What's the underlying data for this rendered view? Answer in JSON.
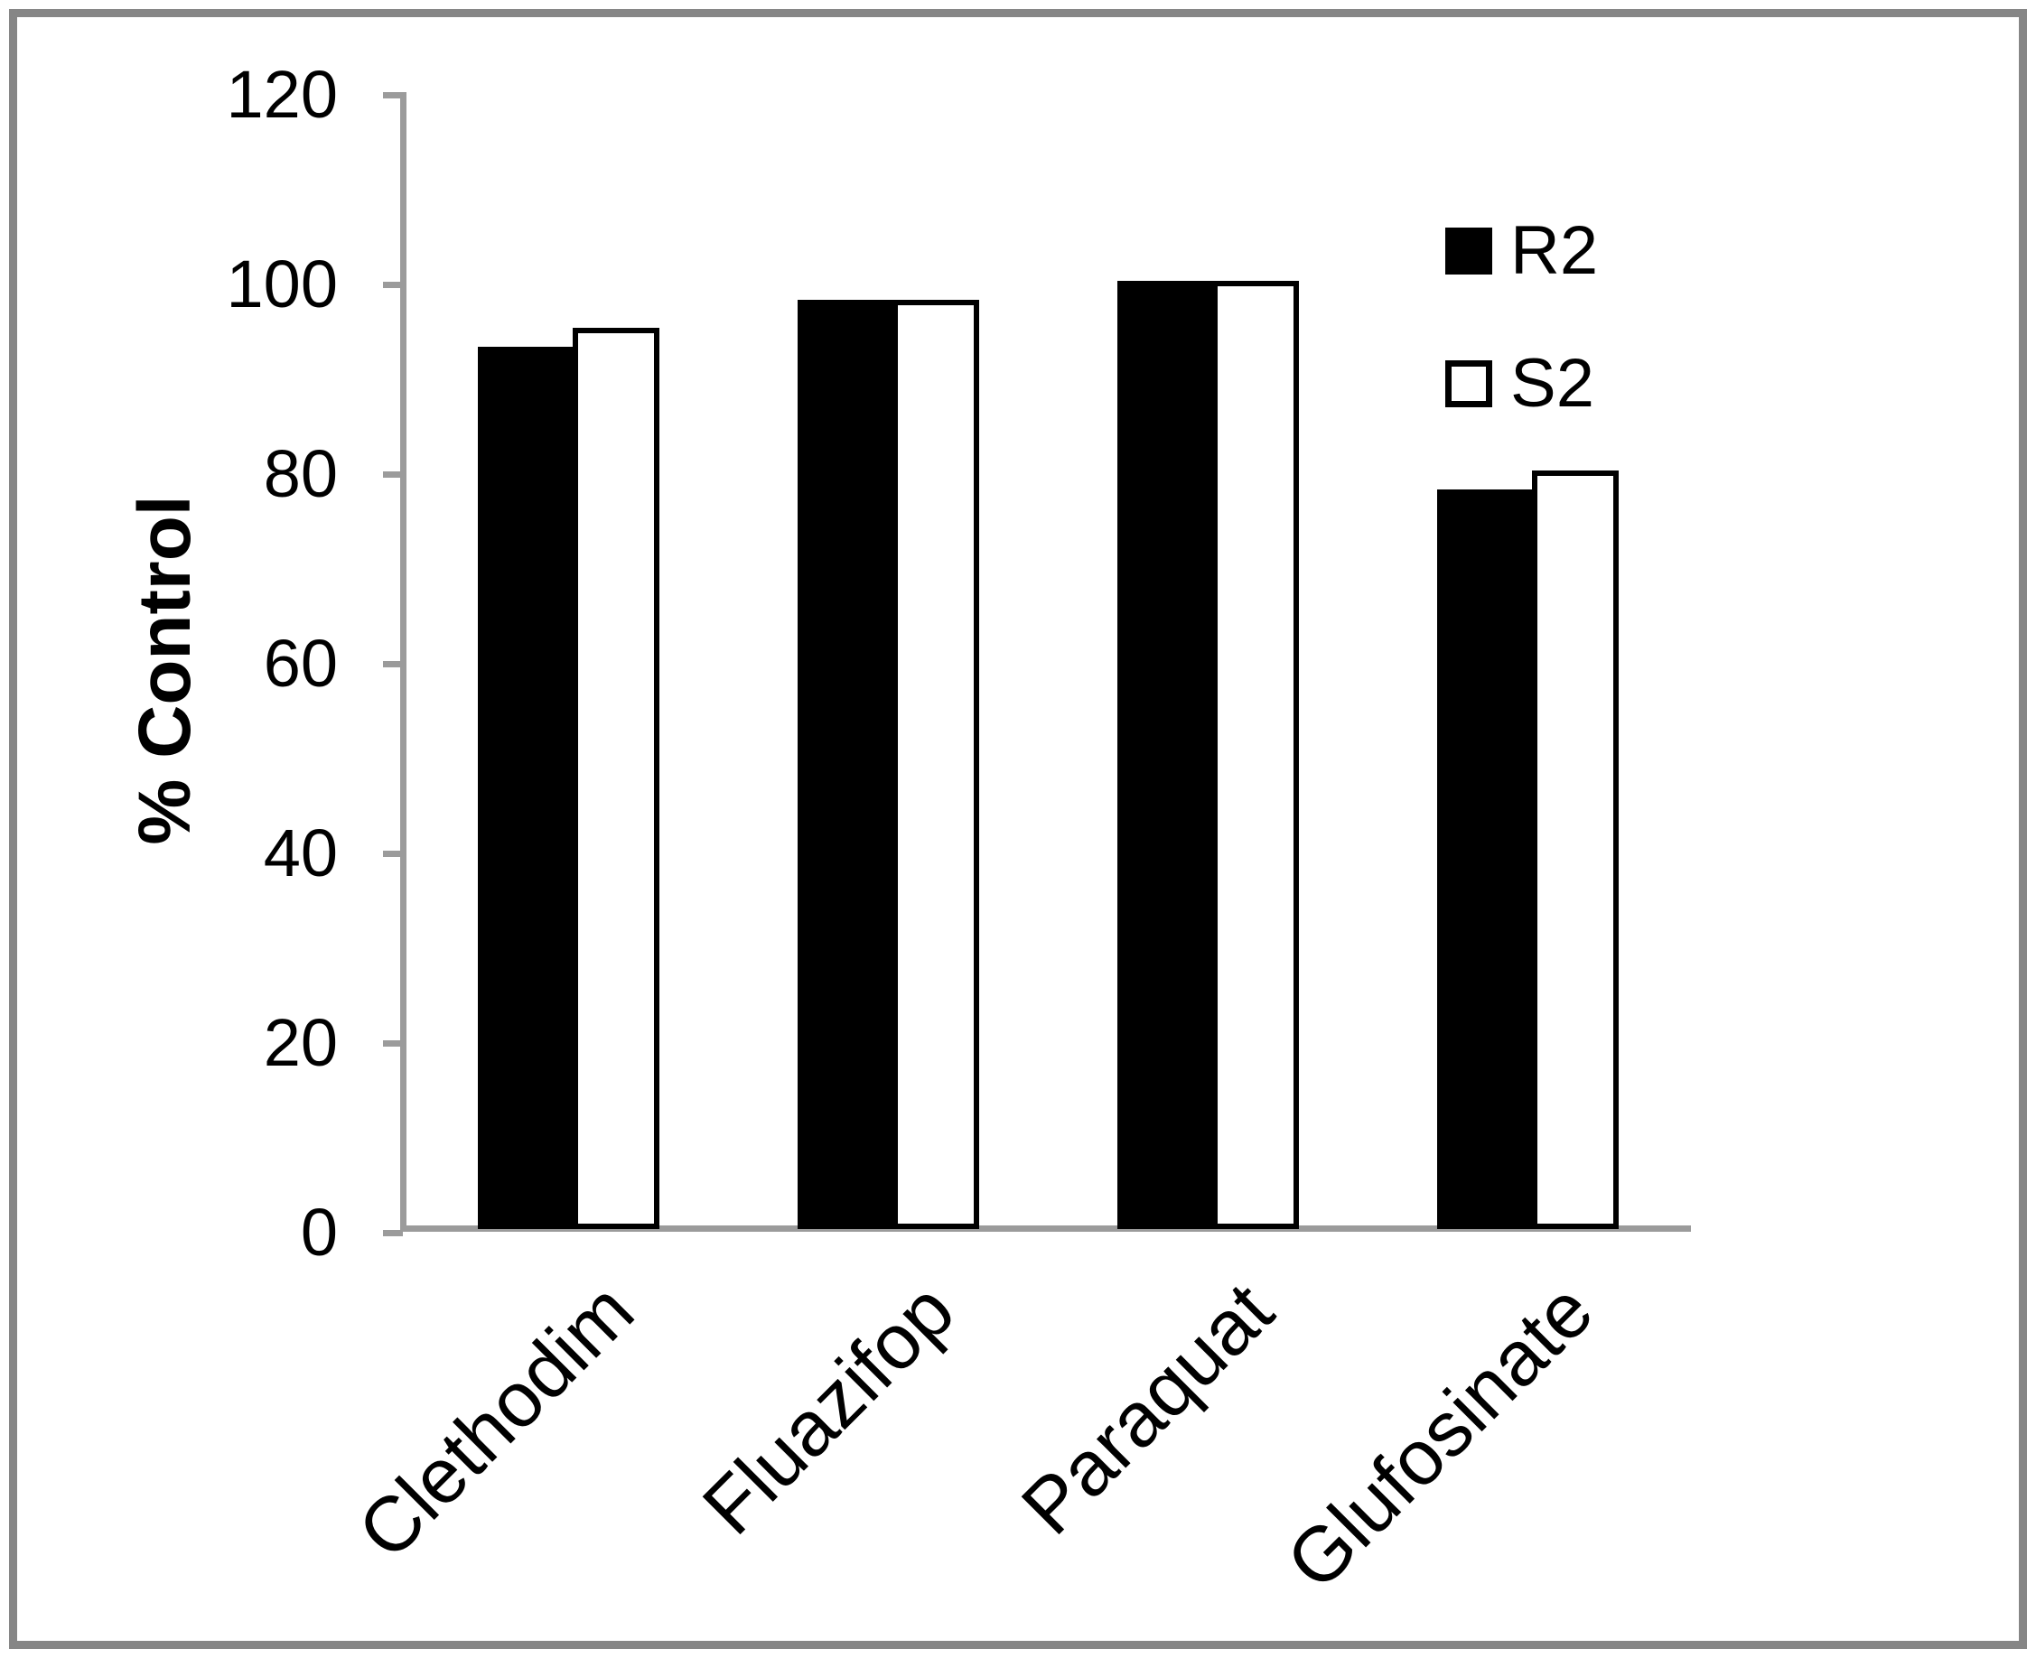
{
  "chart_data": {
    "type": "bar",
    "title": "",
    "categories": [
      "Clethodim",
      "Fluazifop",
      "Paraquat",
      "Glufosinate"
    ],
    "series": [
      {
        "name": "R2",
        "fill": "black",
        "values": [
          93,
          98,
          100,
          78
        ]
      },
      {
        "name": "S2",
        "fill": "white",
        "values": [
          95,
          98,
          100,
          80
        ]
      }
    ],
    "xlabel": "",
    "ylabel": "% Control",
    "ylim": [
      0,
      120
    ],
    "yticks": [
      120,
      100,
      80,
      60,
      40,
      20,
      0
    ],
    "grid": false,
    "legend_position": "upper right"
  },
  "colors": {
    "axis": "#9b9b9b",
    "frame_border": "#868686",
    "bar_r2": "#000000",
    "bar_s2_fill": "#ffffff",
    "bar_s2_border": "#000000",
    "text": "#000000",
    "background": "#ffffff"
  }
}
